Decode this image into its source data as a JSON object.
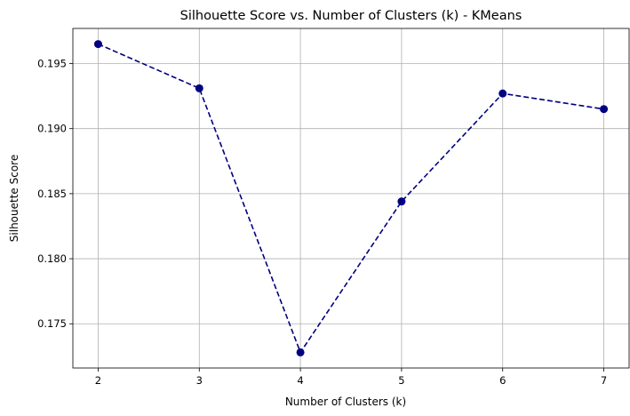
{
  "chart_data": {
    "type": "line",
    "title": "Silhouette Score vs. Number of Clusters (k) - KMeans",
    "xlabel": "Number of Clusters (k)",
    "ylabel": "Silhouette Score",
    "x": [
      2,
      3,
      4,
      5,
      6,
      7
    ],
    "series": [
      {
        "values": [
          0.1965,
          0.1931,
          0.1728,
          0.1844,
          0.1927,
          0.1915
        ],
        "color": "#000080",
        "linestyle": "dashed",
        "marker": "circle"
      }
    ],
    "xticks": [
      "2",
      "3",
      "4",
      "5",
      "6",
      "7"
    ],
    "yticks": [
      "0.175",
      "0.180",
      "0.185",
      "0.190",
      "0.195"
    ],
    "xlim": [
      1.75,
      7.25
    ],
    "ylim": [
      0.1716,
      0.1977
    ],
    "grid": true,
    "legend": "none"
  }
}
